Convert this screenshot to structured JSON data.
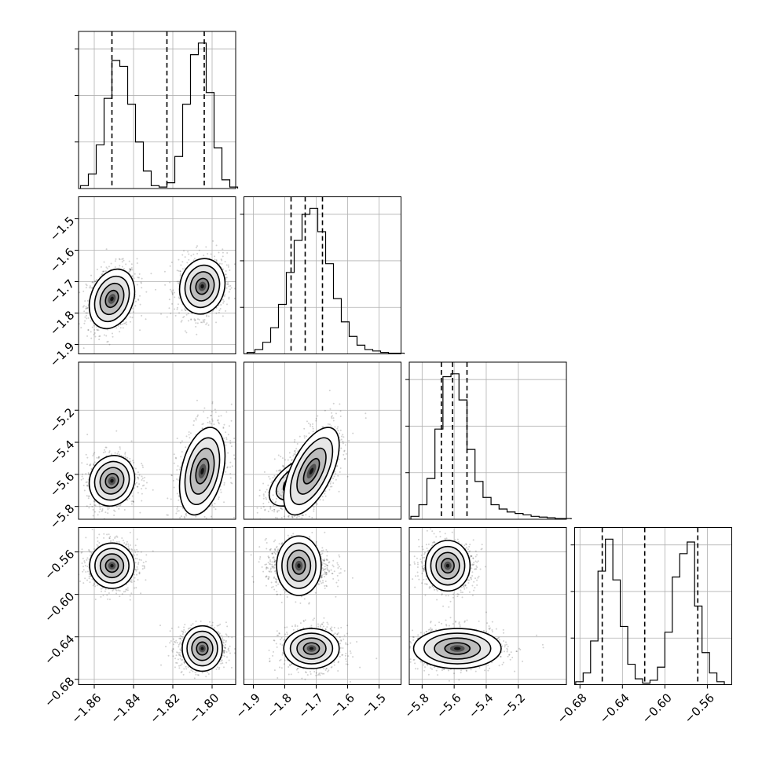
{
  "chart_data": {
    "type": "corner",
    "parameters": [
      {
        "range": [
          -1.868,
          -1.788
        ],
        "ticks": [
          -1.86,
          -1.84,
          -1.82,
          -1.8
        ],
        "ticklabels": [
          "−1.86",
          "−1.84",
          "−1.82",
          "−1.80"
        ]
      },
      {
        "range": [
          -1.93,
          -1.43
        ],
        "ticks": [
          -1.9,
          -1.8,
          -1.7,
          -1.6,
          -1.5
        ],
        "ticklabels": [
          "−1.9",
          "−1.8",
          "−1.7",
          "−1.6",
          "−1.5"
        ]
      },
      {
        "range": [
          -5.88,
          -4.9
        ],
        "ticks": [
          -5.8,
          -5.6,
          -5.4,
          -5.2
        ],
        "ticklabels": [
          "−5.8",
          "−5.6",
          "−5.4",
          "−5.2"
        ]
      },
      {
        "range": [
          -0.685,
          -0.537
        ],
        "ticks": [
          -0.68,
          -0.64,
          -0.6,
          -0.56
        ],
        "ticklabels": [
          "−0.68",
          "−0.64",
          "−0.60",
          "−0.56"
        ]
      }
    ],
    "marginals": [
      {
        "edges": [
          -1.867,
          -1.863,
          -1.859,
          -1.855,
          -1.851,
          -1.847,
          -1.843,
          -1.839,
          -1.835,
          -1.831,
          -1.827,
          -1.823,
          -1.819,
          -1.815,
          -1.811,
          -1.807,
          -1.803,
          -1.799,
          -1.795,
          -1.791
        ],
        "counts": [
          2,
          10,
          30,
          62,
          88,
          84,
          58,
          32,
          12,
          2,
          1,
          4,
          22,
          58,
          92,
          100,
          66,
          28,
          6,
          1
        ],
        "quantiles": [
          -1.851,
          -1.823,
          -1.804
        ]
      },
      {
        "edges": [
          -1.92,
          -1.895,
          -1.87,
          -1.845,
          -1.82,
          -1.795,
          -1.77,
          -1.745,
          -1.72,
          -1.695,
          -1.67,
          -1.645,
          -1.62,
          -1.595,
          -1.57,
          -1.545,
          -1.52,
          -1.495,
          -1.47,
          -1.445
        ],
        "counts": [
          1,
          3,
          8,
          18,
          34,
          56,
          78,
          96,
          100,
          84,
          62,
          38,
          22,
          12,
          6,
          3,
          2,
          1,
          0.5,
          0.5
        ],
        "quantiles": [
          -1.78,
          -1.735,
          -1.68
        ]
      },
      {
        "edges": [
          -5.87,
          -5.82,
          -5.77,
          -5.72,
          -5.67,
          -5.62,
          -5.57,
          -5.52,
          -5.47,
          -5.42,
          -5.37,
          -5.32,
          -5.27,
          -5.22,
          -5.17,
          -5.12,
          -5.07,
          -5.02,
          -4.97,
          -4.92
        ],
        "counts": [
          2,
          10,
          28,
          62,
          98,
          100,
          82,
          48,
          26,
          15,
          10,
          7,
          5,
          4,
          3,
          2,
          1.5,
          1,
          0.5,
          0.5
        ],
        "quantiles": [
          -5.68,
          -5.61,
          -5.52
        ]
      },
      {
        "edges": [
          -0.684,
          -0.677,
          -0.67,
          -0.663,
          -0.656,
          -0.649,
          -0.642,
          -0.635,
          -0.628,
          -0.621,
          -0.614,
          -0.607,
          -0.6,
          -0.593,
          -0.586,
          -0.579,
          -0.572,
          -0.565,
          -0.558,
          -0.551
        ],
        "counts": [
          2,
          8,
          30,
          78,
          100,
          72,
          40,
          14,
          4,
          1,
          3,
          12,
          36,
          74,
          90,
          98,
          54,
          22,
          8,
          2
        ],
        "quantiles": [
          -0.659,
          -0.619,
          -0.569
        ]
      }
    ],
    "modes": [
      {
        "means": [
          -1.851,
          -1.755,
          -5.64,
          -0.573
        ],
        "sds": [
          0.0055,
          0.045,
          0.075,
          0.01
        ],
        "corr": [
          [
            0,
            1,
            0.25
          ],
          [
            0,
            2,
            0.1
          ],
          [
            1,
            2,
            0.55
          ]
        ]
      },
      {
        "means": [
          -1.805,
          -1.715,
          -5.58,
          -0.651
        ],
        "sds": [
          0.0055,
          0.042,
          0.13,
          0.009
        ],
        "corr": [
          [
            0,
            1,
            0.1
          ],
          [
            0,
            2,
            0.35
          ],
          [
            1,
            2,
            0.6
          ]
        ]
      }
    ],
    "grid": true
  }
}
